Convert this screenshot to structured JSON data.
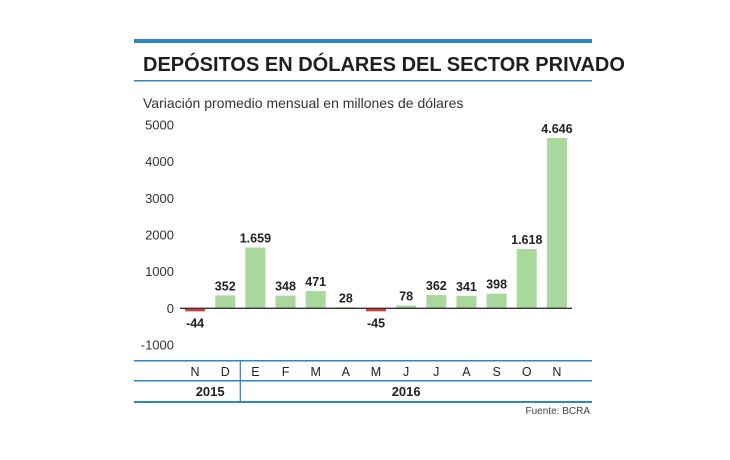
{
  "colors": {
    "accent": "#2f86c6",
    "positive": "#a8d89b",
    "negative": "#d93a34",
    "text": "#222222"
  },
  "chart_data": {
    "type": "bar",
    "title": "DEPÓSITOS EN DÓLARES DEL SECTOR PRIVADO",
    "subtitle": "Variación promedio mensual en millones de dólares",
    "categories": [
      "N",
      "D",
      "E",
      "F",
      "M",
      "A",
      "M",
      "J",
      "J",
      "A",
      "S",
      "O",
      "N"
    ],
    "values": [
      -44,
      352,
      1659,
      348,
      471,
      28,
      -45,
      78,
      362,
      341,
      398,
      1618,
      4646
    ],
    "value_labels": [
      "-44",
      "352",
      "1.659",
      "348",
      "471",
      "28",
      "-45",
      "78",
      "362",
      "341",
      "398",
      "1.618",
      "4.646"
    ],
    "year_groups": [
      {
        "label": "2015",
        "count": 2
      },
      {
        "label": "2016",
        "count": 11
      }
    ],
    "yticks": [
      "5000",
      "4000",
      "3000",
      "2000",
      "1000",
      "0",
      "-1000"
    ],
    "ylim": [
      -1000,
      5000
    ],
    "xlabel": "",
    "ylabel": "",
    "grid": false,
    "source": "Fuente: BCRA"
  }
}
